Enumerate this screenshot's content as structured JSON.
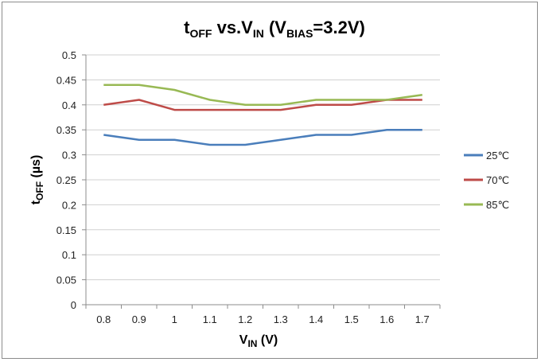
{
  "chart_data": {
    "type": "line",
    "title": {
      "main": "t",
      "main_sub": "OFF",
      "middle": " vs.V",
      "middle_sub": "IN",
      "paren_open": " (V",
      "paren_sub": "BIAS",
      "paren_close": "=3.2V)"
    },
    "xlabel": {
      "main": "V",
      "sub": "IN",
      "tail": " (V)"
    },
    "ylabel": {
      "main": "t",
      "sub": "OFF",
      "tail": " (µs)"
    },
    "x": [
      0.8,
      0.9,
      1.0,
      1.1,
      1.2,
      1.3,
      1.4,
      1.5,
      1.6,
      1.7
    ],
    "x_tick_labels": [
      "0.8",
      "0.9",
      "1",
      "1.1",
      "1.2",
      "1.3",
      "1.4",
      "1.5",
      "1.6",
      "1.7"
    ],
    "y_tick_labels": [
      "0",
      "0.05",
      "0.1",
      "0.15",
      "0.2",
      "0.25",
      "0.3",
      "0.35",
      "0.4",
      "0.45",
      "0.5"
    ],
    "ylim": [
      0,
      0.5
    ],
    "grid": true,
    "legend_position": "right",
    "series": [
      {
        "name": "25℃",
        "color": "#4a7ebb",
        "values": [
          0.34,
          0.33,
          0.33,
          0.32,
          0.32,
          0.33,
          0.34,
          0.34,
          0.35,
          0.35
        ]
      },
      {
        "name": "70℃",
        "color": "#be4b48",
        "values": [
          0.4,
          0.41,
          0.39,
          0.39,
          0.39,
          0.39,
          0.4,
          0.4,
          0.41,
          0.41
        ]
      },
      {
        "name": "85℃",
        "color": "#98b954",
        "values": [
          0.44,
          0.44,
          0.43,
          0.41,
          0.4,
          0.4,
          0.41,
          0.41,
          0.41,
          0.42
        ]
      }
    ]
  }
}
